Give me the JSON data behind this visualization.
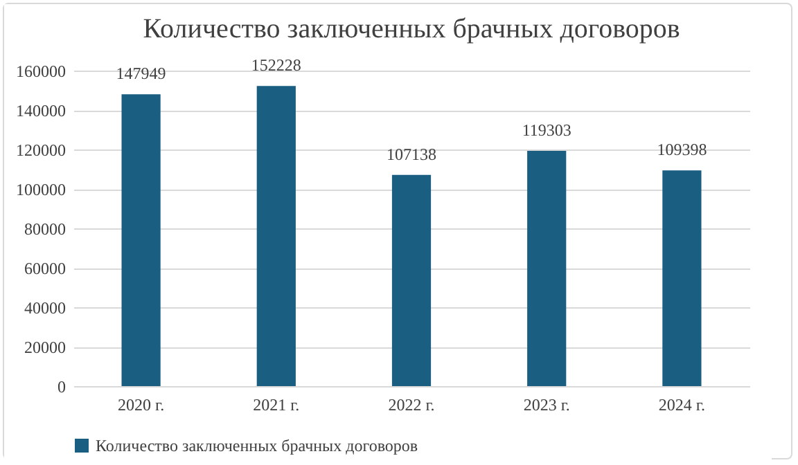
{
  "chart_data": {
    "type": "bar",
    "title": "Количество заключенных брачных договоров",
    "categories": [
      "2020 г.",
      "2021 г.",
      "2022 г.",
      "2023 г.",
      "2024 г."
    ],
    "series": [
      {
        "name": "Количество заключенных брачных договоров",
        "color": "#1a5f82",
        "values": [
          147949,
          152228,
          107138,
          119303,
          109398
        ]
      }
    ],
    "ylim": [
      0,
      160000
    ],
    "yticks": [
      0,
      20000,
      40000,
      60000,
      80000,
      100000,
      120000,
      140000,
      160000
    ],
    "grid": "y",
    "legend": "bottom",
    "data_labels": true
  }
}
